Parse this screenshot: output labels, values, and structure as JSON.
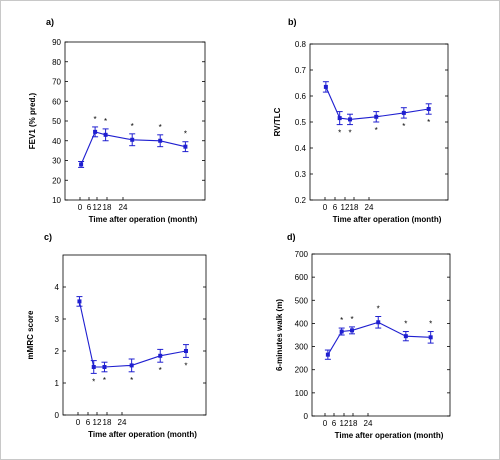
{
  "chart_data": [
    {
      "type": "line",
      "panel_label": "a)",
      "title": "",
      "xlabel": "Time after operation (month)",
      "ylabel": "FEV1 (% pred.)",
      "x_tick_labels": [
        "0",
        "6",
        "12",
        "18",
        "24"
      ],
      "y_ticks": [
        10,
        20,
        30,
        40,
        50,
        60,
        70,
        80,
        90
      ],
      "y_tick_labels": [
        "10",
        "20",
        "30",
        "40",
        "50",
        "60",
        "70",
        "80",
        "90"
      ],
      "ylim": [
        10,
        90
      ],
      "xlim": [
        -6,
        48
      ],
      "grid": false,
      "line_color": "#1f1fd0",
      "series": [
        {
          "x": [
            0,
            6,
            12,
            24,
            36,
            48
          ],
          "values": [
            28,
            44.5,
            43,
            40.5,
            40,
            37
          ],
          "error": [
            1.5,
            2.5,
            3,
            3,
            3,
            2.5
          ],
          "significant": [
            false,
            true,
            true,
            true,
            true,
            true
          ]
        }
      ]
    },
    {
      "type": "line",
      "panel_label": "b)",
      "title": "",
      "xlabel": "Time after operation (month)",
      "ylabel": "RV/TLC",
      "x_tick_labels": [
        "0",
        "6",
        "12",
        "18",
        "24"
      ],
      "y_ticks": [
        0.2,
        0.3,
        0.4,
        0.5,
        0.6,
        0.7,
        0.8
      ],
      "y_tick_labels": [
        "0.2",
        "0.3",
        "0.4",
        "0.5",
        "0.6",
        "0.7",
        "0.8"
      ],
      "ylim": [
        0.2,
        0.8
      ],
      "xlim": [
        -6,
        48
      ],
      "grid": false,
      "line_color": "#1f1fd0",
      "series": [
        {
          "x": [
            0,
            6,
            12,
            24,
            36,
            48
          ],
          "values": [
            0.635,
            0.515,
            0.51,
            0.52,
            0.535,
            0.55
          ],
          "error": [
            0.02,
            0.025,
            0.02,
            0.02,
            0.02,
            0.02
          ],
          "significant": [
            false,
            true,
            true,
            true,
            true,
            true
          ]
        }
      ]
    },
    {
      "type": "line",
      "panel_label": "c)",
      "title": "",
      "xlabel": "Time after operation (month)",
      "ylabel": "mMRC score",
      "x_tick_labels": [
        "0",
        "6",
        "12",
        "18",
        "24"
      ],
      "y_ticks": [
        0,
        1,
        2,
        3,
        4
      ],
      "y_tick_labels": [
        "0",
        "1",
        "2",
        "3",
        "4"
      ],
      "ylim": [
        0,
        5
      ],
      "xlim": [
        -6,
        48
      ],
      "grid": false,
      "line_color": "#1f1fd0",
      "series": [
        {
          "x": [
            0,
            6,
            12,
            24,
            36,
            48
          ],
          "values": [
            3.55,
            1.5,
            1.5,
            1.55,
            1.85,
            2.0
          ],
          "error": [
            0.15,
            0.2,
            0.15,
            0.2,
            0.2,
            0.2
          ],
          "significant": [
            false,
            true,
            true,
            true,
            true,
            true
          ]
        }
      ]
    },
    {
      "type": "line",
      "panel_label": "d)",
      "title": "",
      "xlabel": "Time after operation (month)",
      "ylabel": "6-minutes walk (m)",
      "x_tick_labels": [
        "0",
        "6",
        "12",
        "18",
        "24"
      ],
      "y_ticks": [
        0,
        100,
        200,
        300,
        400,
        500,
        600,
        700
      ],
      "y_tick_labels": [
        "0",
        "100",
        "200",
        "300",
        "400",
        "500",
        "600",
        "700"
      ],
      "ylim": [
        0,
        700
      ],
      "xlim": [
        -6,
        48
      ],
      "grid": false,
      "line_color": "#1f1fd0",
      "series": [
        {
          "x": [
            0,
            6,
            12,
            24,
            36,
            48
          ],
          "values": [
            265,
            365,
            370,
            405,
            345,
            340
          ],
          "error": [
            20,
            15,
            15,
            25,
            20,
            25
          ],
          "significant": [
            false,
            true,
            true,
            true,
            true,
            true
          ]
        }
      ]
    }
  ],
  "significance_marker": "*"
}
